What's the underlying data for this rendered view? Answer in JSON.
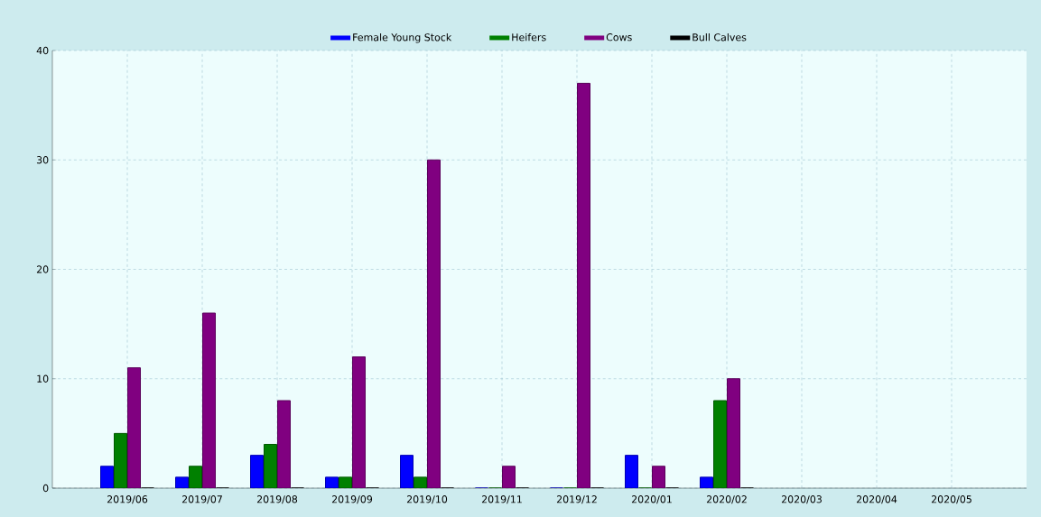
{
  "chart_data": {
    "type": "bar",
    "categories": [
      "2019/06",
      "2019/07",
      "2019/08",
      "2019/09",
      "2019/10",
      "2019/11",
      "2019/12",
      "2020/01",
      "2020/02",
      "2020/03",
      "2020/04",
      "2020/05"
    ],
    "series": [
      {
        "name": "Female Young Stock",
        "color": "#0000ff",
        "values": [
          2,
          1,
          3,
          1,
          3,
          0,
          0,
          3,
          1,
          null,
          null,
          null
        ]
      },
      {
        "name": "Heifers",
        "color": "#008000",
        "values": [
          5,
          2,
          4,
          1,
          1,
          0,
          0,
          0,
          8,
          null,
          null,
          null
        ]
      },
      {
        "name": "Cows",
        "color": "#800080",
        "values": [
          11,
          16,
          8,
          12,
          30,
          2,
          37,
          2,
          10,
          null,
          null,
          null
        ]
      },
      {
        "name": "Bull Calves",
        "color": "#000000",
        "values": [
          0,
          0,
          0,
          0,
          0,
          0,
          0,
          0,
          0,
          null,
          null,
          null
        ]
      }
    ],
    "ylim": [
      0,
      40
    ],
    "yticks": [
      0,
      10,
      20,
      30,
      40
    ],
    "grid": true,
    "legend": "top"
  }
}
